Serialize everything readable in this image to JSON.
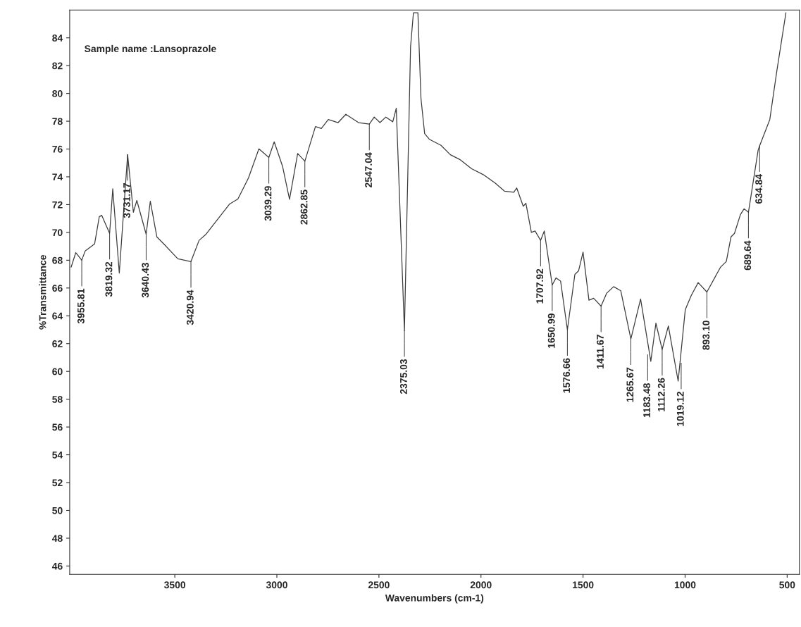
{
  "chart_data": {
    "type": "line",
    "xlabel": "Wavenumbers (cm-1)",
    "ylabel": "%Transmittance",
    "xlim": [
      4015,
      440
    ],
    "xticks": [
      3500,
      3000,
      2500,
      2000,
      1500,
      1000,
      500
    ],
    "ylim": [
      45.4,
      86
    ],
    "yticks": [
      46,
      48,
      50,
      52,
      54,
      56,
      58,
      60,
      62,
      64,
      66,
      68,
      70,
      72,
      74,
      76,
      78,
      80,
      82,
      84
    ],
    "grid": false,
    "legend": false,
    "marker": "none",
    "line_style": "solid",
    "series": [
      {
        "color": "#3c3c3c",
        "x": [
          4008,
          3985,
          3955.81,
          3939,
          3893,
          3870,
          3858,
          3819.32,
          3804,
          3772,
          3731.17,
          3703,
          3686,
          3640.43,
          3620,
          3588,
          3554,
          3485,
          3420.94,
          3381,
          3347,
          3231,
          3191,
          3139,
          3088,
          3039.29,
          3013,
          2972,
          2938,
          2898,
          2862.85,
          2811,
          2782,
          2748,
          2700,
          2662,
          2600,
          2547.04,
          2523,
          2495,
          2466,
          2432,
          2415,
          2375.03,
          2345,
          2331,
          2309,
          2294,
          2276,
          2253,
          2196,
          2150,
          2104,
          2046,
          1989,
          1931,
          1885,
          1839,
          1825,
          1793,
          1780,
          1753,
          1735,
          1707.92,
          1690,
          1650.99,
          1632,
          1610,
          1576.66,
          1540,
          1522,
          1500,
          1471,
          1448,
          1411.67,
          1384,
          1350,
          1315,
          1265.67,
          1218,
          1168,
          1143,
          1112.26,
          1082,
          1034,
          999,
          970,
          936,
          893.1,
          827,
          798,
          775,
          758,
          729,
          711,
          689.64,
          642,
          634.84,
          585,
          550,
          506
        ],
        "values": [
          67.5,
          68.55,
          68.0,
          68.67,
          69.17,
          71.13,
          71.23,
          69.93,
          73.14,
          67.08,
          75.6,
          71.45,
          72.3,
          69.87,
          72.25,
          69.68,
          69.17,
          68.1,
          67.9,
          69.43,
          69.87,
          72.05,
          72.4,
          73.92,
          76.01,
          75.39,
          76.52,
          74.75,
          72.38,
          75.68,
          75.12,
          77.62,
          77.48,
          78.12,
          77.9,
          78.5,
          77.9,
          77.79,
          78.3,
          77.9,
          78.3,
          77.96,
          78.93,
          62.93,
          83.36,
          85.8,
          85.8,
          79.64,
          77.11,
          76.7,
          76.27,
          75.59,
          75.25,
          74.58,
          74.16,
          73.56,
          72.97,
          72.89,
          73.2,
          71.88,
          72.1,
          70.0,
          70.1,
          69.43,
          70.1,
          66.22,
          66.73,
          66.5,
          63.0,
          66.98,
          67.23,
          68.58,
          65.12,
          65.26,
          64.7,
          65.63,
          66.1,
          65.8,
          62.34,
          65.21,
          60.73,
          63.47,
          61.58,
          63.27,
          59.3,
          64.45,
          65.46,
          66.39,
          65.71,
          67.49,
          67.91,
          69.68,
          69.93,
          71.28,
          71.7,
          71.45,
          75.93,
          76.23,
          78.12,
          81.67,
          85.8
        ]
      }
    ],
    "annotations": [
      "Sample name :Lansoprazole",
      {
        "text": "3955.81",
        "x": 3955.81,
        "y": 68.0
      },
      {
        "text": "3819.32",
        "x": 3819.32,
        "y": 69.93
      },
      {
        "text": "3731.17",
        "x": 3731.17,
        "y": 75.6
      },
      {
        "text": "3640.43",
        "x": 3640.43,
        "y": 69.87
      },
      {
        "text": "3420.94",
        "x": 3420.94,
        "y": 67.9
      },
      {
        "text": "3039.29",
        "x": 3039.29,
        "y": 75.39
      },
      {
        "text": "2862.85",
        "x": 2862.85,
        "y": 75.12
      },
      {
        "text": "2547.04",
        "x": 2547.04,
        "y": 77.79
      },
      {
        "text": "2375.03",
        "x": 2375.03,
        "y": 62.93
      },
      {
        "text": "1707.92",
        "x": 1707.92,
        "y": 69.43
      },
      {
        "text": "1650.99",
        "x": 1650.99,
        "y": 66.22
      },
      {
        "text": "1576.66",
        "x": 1576.66,
        "y": 63.0
      },
      {
        "text": "1411.67",
        "x": 1411.67,
        "y": 64.7
      },
      {
        "text": "1265.67",
        "x": 1265.67,
        "y": 62.34
      },
      {
        "text": "1183.48",
        "x": 1183.48,
        "y": 61.2
      },
      {
        "text": "1112.26",
        "x": 1112.26,
        "y": 61.58
      },
      {
        "text": "1019.12",
        "x": 1019.12,
        "y": 60.6
      },
      {
        "text": "893.10",
        "x": 893.1,
        "y": 65.71
      },
      {
        "text": "689.64",
        "x": 689.64,
        "y": 71.45
      },
      {
        "text": "634.84",
        "x": 634.84,
        "y": 76.23
      }
    ]
  }
}
